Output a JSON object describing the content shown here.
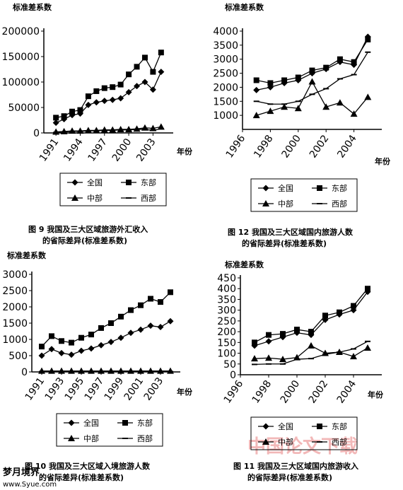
{
  "chart_data": [
    {
      "type": "line",
      "ylabel": "标准差系数",
      "xlabel": "年份",
      "caption": [
        "图 9   我国及三大区域旅游外汇收入",
        "的省际差异(标准差系数)"
      ],
      "x": [
        1991,
        1992,
        1993,
        1994,
        1995,
        1996,
        1997,
        1998,
        1999,
        2000,
        2001,
        2002,
        2003,
        2004
      ],
      "xlim": [
        1989.5,
        2005.5
      ],
      "xticks": [
        1991,
        1994,
        1997,
        2000,
        2003
      ],
      "ylim": [
        0,
        200000
      ],
      "yticks": [
        0,
        50000,
        100000,
        150000,
        200000
      ],
      "series": [
        {
          "name": "全国",
          "color": "#000000",
          "marker": "diamond",
          "values": [
            20000,
            27000,
            35000,
            38000,
            55000,
            60000,
            63000,
            65000,
            68000,
            80000,
            92000,
            100000,
            85000,
            120000
          ]
        },
        {
          "name": "东部",
          "color": "#000000",
          "marker": "square",
          "values": [
            30000,
            33000,
            42000,
            45000,
            72000,
            82000,
            88000,
            90000,
            95000,
            115000,
            130000,
            148000,
            120000,
            158000
          ]
        },
        {
          "name": "中部",
          "color": "#000000",
          "marker": "triangle",
          "values": [
            2000,
            3000,
            4000,
            4000,
            5000,
            5000,
            6000,
            6000,
            7000,
            7000,
            8000,
            10000,
            9000,
            12000
          ]
        },
        {
          "name": "西部",
          "color": "#000000",
          "marker": "dash",
          "values": [
            1000,
            2000,
            3000,
            3000,
            4000,
            4000,
            5000,
            5000,
            6000,
            6000,
            7000,
            7000,
            5000,
            8000
          ]
        }
      ]
    },
    {
      "type": "line",
      "ylabel": "标准差系数",
      "xlabel": "年份",
      "caption": [
        "图 12   我国及三大区域国内旅游人数",
        "的省际差异(标准差系数)"
      ],
      "x": [
        1997,
        1998,
        1999,
        2000,
        2001,
        2002,
        2003,
        2004,
        2005
      ],
      "xlim": [
        1996,
        2006
      ],
      "xticks": [
        1996,
        1998,
        2000,
        2002,
        2004
      ],
      "ylim": [
        500,
        4000
      ],
      "yticks": [
        1000,
        1500,
        2000,
        2500,
        3000,
        3500,
        4000
      ],
      "series": [
        {
          "name": "全国",
          "color": "#000000",
          "marker": "diamond",
          "values": [
            1900,
            2000,
            2150,
            2250,
            2500,
            2650,
            2900,
            2800,
            3800
          ]
        },
        {
          "name": "东部",
          "color": "#000000",
          "marker": "square",
          "values": [
            2250,
            2150,
            2250,
            2350,
            2600,
            2700,
            3000,
            2900,
            3700
          ]
        },
        {
          "name": "中部",
          "color": "#000000",
          "marker": "triangle",
          "values": [
            1000,
            1150,
            1300,
            1250,
            2200,
            1300,
            1450,
            1050,
            1650
          ]
        },
        {
          "name": "西部",
          "color": "#000000",
          "marker": "dash",
          "values": [
            1500,
            1400,
            1400,
            1500,
            1750,
            1950,
            2300,
            2450,
            3250
          ]
        }
      ]
    },
    {
      "type": "line",
      "ylabel": "标准差系数",
      "xlabel": "年份",
      "caption": [
        "图 10   我国及三大区域入境旅游人数",
        "的省际差异(标准差系数)"
      ],
      "x": [
        1991,
        1992,
        1993,
        1994,
        1995,
        1996,
        1997,
        1998,
        1999,
        2000,
        2001,
        2002,
        2003,
        2004
      ],
      "xlim": [
        1990,
        2005
      ],
      "xticks": [
        1991,
        1993,
        1995,
        1997,
        1999,
        2001,
        2003
      ],
      "ylim": [
        0,
        3000
      ],
      "yticks": [
        0,
        500,
        1000,
        1500,
        2000,
        2500,
        3000
      ],
      "series": [
        {
          "name": "全国",
          "color": "#000000",
          "marker": "diamond",
          "values": [
            500,
            700,
            580,
            530,
            650,
            720,
            820,
            920,
            1050,
            1200,
            1300,
            1420,
            1380,
            1560
          ]
        },
        {
          "name": "东部",
          "color": "#000000",
          "marker": "square",
          "values": [
            780,
            1100,
            950,
            900,
            1050,
            1150,
            1350,
            1500,
            1700,
            1900,
            2050,
            2250,
            2150,
            2450
          ]
        },
        {
          "name": "中部",
          "color": "#000000",
          "marker": "triangle",
          "values": [
            30,
            30,
            30,
            30,
            30,
            30,
            30,
            30,
            30,
            30,
            30,
            30,
            30,
            30
          ]
        },
        {
          "name": "西部",
          "color": "#000000",
          "marker": "dash",
          "values": [
            10,
            10,
            10,
            10,
            10,
            10,
            10,
            10,
            10,
            10,
            10,
            10,
            10,
            10
          ]
        }
      ]
    },
    {
      "type": "line",
      "ylabel": "标准差系数",
      "xlabel": "年份",
      "caption": [
        "图 11   我国及三大区域国内旅游收入",
        "的省际差异(标准差系数)"
      ],
      "x": [
        1997,
        1998,
        1999,
        2000,
        2001,
        2002,
        2003,
        2004,
        2005
      ],
      "xlim": [
        1996,
        2006
      ],
      "xticks": [
        1996,
        1998,
        2000,
        2002,
        2004
      ],
      "ylim": [
        0,
        450
      ],
      "yticks": [
        0,
        50,
        100,
        150,
        200,
        250,
        300,
        350,
        400,
        450
      ],
      "series": [
        {
          "name": "全国",
          "color": "#000000",
          "marker": "diamond",
          "values": [
            135,
            155,
            175,
            195,
            185,
            255,
            280,
            300,
            385
          ]
        },
        {
          "name": "东部",
          "color": "#000000",
          "marker": "square",
          "values": [
            150,
            185,
            190,
            210,
            200,
            275,
            290,
            320,
            400
          ]
        },
        {
          "name": "中部",
          "color": "#000000",
          "marker": "triangle",
          "values": [
            75,
            78,
            72,
            80,
            135,
            100,
            105,
            85,
            125
          ]
        },
        {
          "name": "西部",
          "color": "#000000",
          "marker": "dash",
          "values": [
            48,
            50,
            50,
            72,
            75,
            95,
            105,
            120,
            155
          ]
        }
      ]
    }
  ],
  "watermarks": [
    "中国论文下载",
    "梦月境界",
    "www.Syue.com"
  ]
}
